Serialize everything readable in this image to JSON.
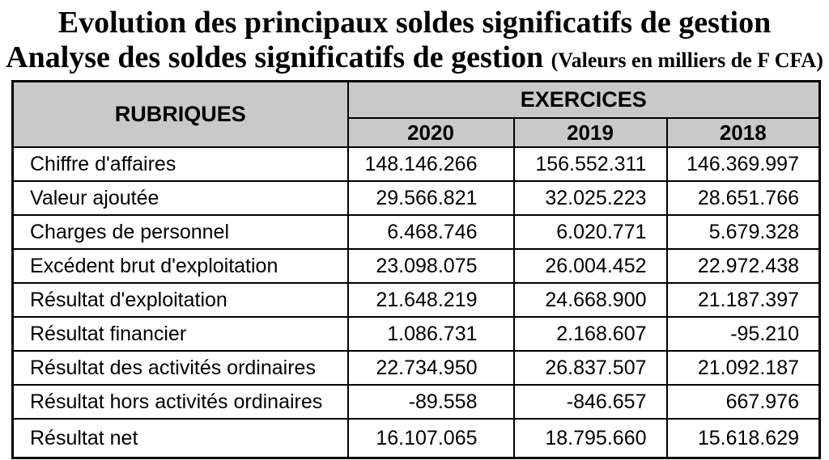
{
  "title": {
    "line1": "Evolution des principaux soldes significatifs de gestion",
    "line2": "Analyse des soldes significatifs de gestion",
    "line2_note": "(Valeurs en milliers de F CFA)"
  },
  "table": {
    "header": {
      "rubriques": "RUBRIQUES",
      "exercices": "EXERCICES",
      "years": [
        "2020",
        "2019",
        "2018"
      ]
    },
    "rows": [
      {
        "label": "Chiffre d'affaires",
        "values": [
          "148.146.266",
          "156.552.311",
          "146.369.997"
        ]
      },
      {
        "label": "Valeur ajoutée",
        "values": [
          "29.566.821",
          "32.025.223",
          "28.651.766"
        ]
      },
      {
        "label": "Charges de personnel",
        "values": [
          "6.468.746",
          "6.020.771",
          "5.679.328"
        ]
      },
      {
        "label": "Excédent brut d'exploitation",
        "values": [
          "23.098.075",
          "26.004.452",
          "22.972.438"
        ]
      },
      {
        "label": "Résultat d'exploitation",
        "values": [
          "21.648.219",
          "24.668.900",
          "21.187.397"
        ]
      },
      {
        "label": "Résultat financier",
        "values": [
          "1.086.731",
          "2.168.607",
          "-95.210"
        ]
      },
      {
        "label": "Résultat des activités ordinaires",
        "values": [
          "22.734.950",
          "26.837.507",
          "21.092.187"
        ]
      },
      {
        "label": "Résultat hors activités ordinaires",
        "values": [
          "-89.558",
          "-846.657",
          "667.976"
        ]
      },
      {
        "label": "Résultat net",
        "values": [
          "16.107.065",
          "18.795.660",
          "15.618.629"
        ]
      }
    ],
    "colors": {
      "header_bg": "#c9c9c9",
      "border": "#000000",
      "text": "#000000"
    }
  }
}
